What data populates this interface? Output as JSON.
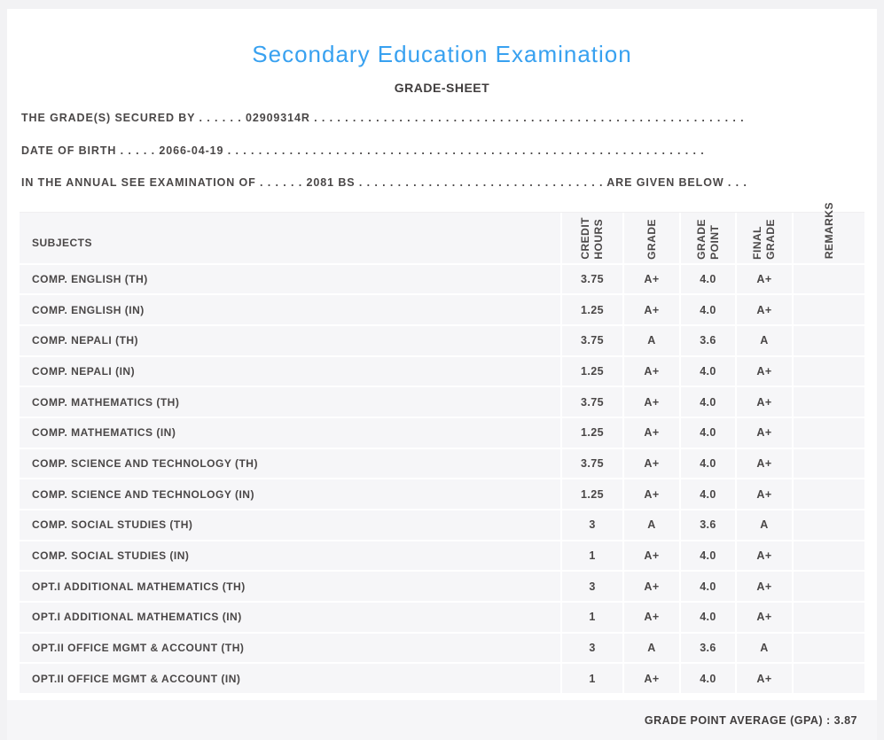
{
  "header": {
    "title": "Secondary Education Examination",
    "subtitle": "GRADE-SHEET"
  },
  "info": {
    "line1": "THE GRADE(S) SECURED BY . . . . . . 02909314R . . . . . . . . . . . . . . . . . . . . . . . . . . . . . . . . . . . . . . . . . . . . . . . . . . . . . . . .",
    "line2": "DATE OF BIRTH . . . . . 2066-04-19 . . . . . . . . . . . . . . . . . . . . . . . . . . . . . . . . . . . . . . . . . . . . . . . . . . . . . . . . . . . . . .",
    "line3": "IN THE ANNUAL SEE EXAMINATION OF . . . . . . 2081 BS . . . . . . . . . . . . . . . . . . . . . . . . . . . . . . . . ARE GIVEN BELOW . . ."
  },
  "table": {
    "columns": [
      "SUBJECTS",
      "CREDIT\nHOURS",
      "GRADE",
      "GRADE\nPOINT",
      "FINAL\nGRADE",
      "REMARKS"
    ],
    "rows": [
      {
        "subject": "COMP. ENGLISH (TH)",
        "credit": "3.75",
        "grade": "A+",
        "point": "4.0",
        "final": "A+",
        "remarks": ""
      },
      {
        "subject": "COMP. ENGLISH (IN)",
        "credit": "1.25",
        "grade": "A+",
        "point": "4.0",
        "final": "A+",
        "remarks": ""
      },
      {
        "subject": "COMP. NEPALI (TH)",
        "credit": "3.75",
        "grade": "A",
        "point": "3.6",
        "final": "A",
        "remarks": ""
      },
      {
        "subject": "COMP. NEPALI (IN)",
        "credit": "1.25",
        "grade": "A+",
        "point": "4.0",
        "final": "A+",
        "remarks": ""
      },
      {
        "subject": "COMP. MATHEMATICS (TH)",
        "credit": "3.75",
        "grade": "A+",
        "point": "4.0",
        "final": "A+",
        "remarks": ""
      },
      {
        "subject": "COMP. MATHEMATICS (IN)",
        "credit": "1.25",
        "grade": "A+",
        "point": "4.0",
        "final": "A+",
        "remarks": ""
      },
      {
        "subject": "COMP. SCIENCE AND TECHNOLOGY (TH)",
        "credit": "3.75",
        "grade": "A+",
        "point": "4.0",
        "final": "A+",
        "remarks": ""
      },
      {
        "subject": "COMP. SCIENCE AND TECHNOLOGY (IN)",
        "credit": "1.25",
        "grade": "A+",
        "point": "4.0",
        "final": "A+",
        "remarks": ""
      },
      {
        "subject": "COMP. SOCIAL STUDIES (TH)",
        "credit": "3",
        "grade": "A",
        "point": "3.6",
        "final": "A",
        "remarks": ""
      },
      {
        "subject": "COMP. SOCIAL STUDIES (IN)",
        "credit": "1",
        "grade": "A+",
        "point": "4.0",
        "final": "A+",
        "remarks": ""
      },
      {
        "subject": "OPT.I ADDITIONAL MATHEMATICS (TH)",
        "credit": "3",
        "grade": "A+",
        "point": "4.0",
        "final": "A+",
        "remarks": ""
      },
      {
        "subject": "OPT.I ADDITIONAL MATHEMATICS (IN)",
        "credit": "1",
        "grade": "A+",
        "point": "4.0",
        "final": "A+",
        "remarks": ""
      },
      {
        "subject": "OPT.II OFFICE MGMT & ACCOUNT (TH)",
        "credit": "3",
        "grade": "A",
        "point": "3.6",
        "final": "A",
        "remarks": ""
      },
      {
        "subject": "OPT.II OFFICE MGMT & ACCOUNT (IN)",
        "credit": "1",
        "grade": "A+",
        "point": "4.0",
        "final": "A+",
        "remarks": ""
      }
    ]
  },
  "footer": {
    "gpa_text": "GRADE POINT AVERAGE (GPA) : 3.87"
  },
  "colors": {
    "title_blue": "#38a1f0",
    "body_text": "#4a4747",
    "row_background": "#f6f6f8",
    "page_background": "#f2f2f4",
    "card_background": "#ffffff"
  }
}
